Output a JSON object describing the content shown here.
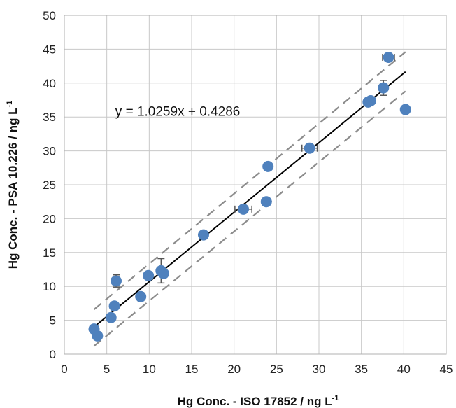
{
  "chart_data": {
    "type": "scatter",
    "xlabel": "Hg Conc. - ISO 17852 / ng L",
    "xlabel_sup": "-1",
    "ylabel": "Hg Conc. - PSA 10.226 / ng L",
    "ylabel_sup": "-1",
    "xlim": [
      0,
      45
    ],
    "ylim": [
      0,
      50
    ],
    "xticks": [
      0,
      5,
      10,
      15,
      20,
      25,
      30,
      35,
      40,
      45
    ],
    "yticks": [
      0,
      5,
      10,
      15,
      20,
      25,
      30,
      35,
      40,
      45,
      50
    ],
    "grid": true,
    "annotation": "y = 1.0259x + 0.4286",
    "fit": {
      "slope": 1.0259,
      "intercept": 0.4286,
      "x_range": [
        3.5,
        40.2
      ]
    },
    "confidence_band": {
      "upper": [
        [
          3.5,
          6.6
        ],
        [
          40.2,
          44.6
        ]
      ],
      "lower": [
        [
          3.5,
          1.2
        ],
        [
          40.2,
          38.8
        ]
      ]
    },
    "points": [
      {
        "x": 3.5,
        "y": 3.7,
        "xerr": 0,
        "yerr": 0
      },
      {
        "x": 3.9,
        "y": 2.7,
        "xerr": 0,
        "yerr": 0
      },
      {
        "x": 5.5,
        "y": 5.4,
        "xerr": 0,
        "yerr": 0
      },
      {
        "x": 5.9,
        "y": 7.1,
        "xerr": 0,
        "yerr": 0
      },
      {
        "x": 6.1,
        "y": 10.8,
        "xerr": 0,
        "yerr": 0.9
      },
      {
        "x": 9.0,
        "y": 8.5,
        "xerr": 0,
        "yerr": 0.6
      },
      {
        "x": 9.9,
        "y": 11.6,
        "xerr": 0,
        "yerr": 0
      },
      {
        "x": 11.4,
        "y": 12.3,
        "xerr": 0,
        "yerr": 1.8
      },
      {
        "x": 11.7,
        "y": 11.9,
        "xerr": 0,
        "yerr": 0
      },
      {
        "x": 16.4,
        "y": 17.6,
        "xerr": 0,
        "yerr": 0
      },
      {
        "x": 21.1,
        "y": 21.4,
        "xerr": 1.0,
        "yerr": 0
      },
      {
        "x": 23.8,
        "y": 22.5,
        "xerr": 0,
        "yerr": 0
      },
      {
        "x": 24.0,
        "y": 27.7,
        "xerr": 0,
        "yerr": 0
      },
      {
        "x": 28.9,
        "y": 30.4,
        "xerr": 0.9,
        "yerr": 0
      },
      {
        "x": 35.8,
        "y": 37.2,
        "xerr": 0,
        "yerr": 0
      },
      {
        "x": 36.1,
        "y": 37.4,
        "xerr": 0,
        "yerr": 0
      },
      {
        "x": 37.6,
        "y": 39.3,
        "xerr": 0,
        "yerr": 1.1
      },
      {
        "x": 38.2,
        "y": 43.8,
        "xerr": 0.7,
        "yerr": 0
      },
      {
        "x": 40.2,
        "y": 36.1,
        "xerr": 0,
        "yerr": 0
      }
    ],
    "colors": {
      "marker": "#4f81bd",
      "fit_line": "#000000",
      "band": "#8c8c8c",
      "grid": "#c8c8c8",
      "error_bar": "#555555"
    }
  }
}
